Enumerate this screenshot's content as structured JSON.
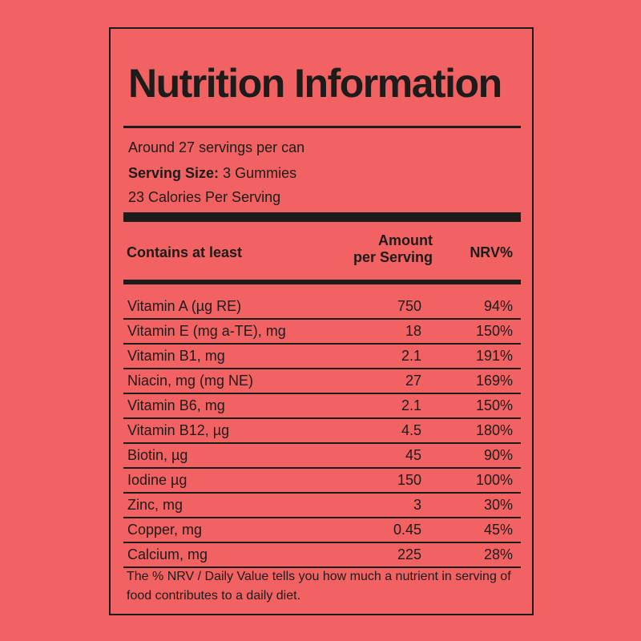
{
  "label": {
    "title": "Nutrition Information",
    "servings_per_can": "Around 27 servings per can",
    "serving_size_label": "Serving Size:",
    "serving_size_value": "3 Gummies",
    "calories": "23 Calories Per Serving",
    "columns": {
      "contains": "Contains at least",
      "amount_line1": "Amount",
      "amount_line2": "per Serving",
      "nrv": "NRV%"
    },
    "nutrients": [
      {
        "name": "Vitamin A  (µg RE)",
        "amount": "750",
        "nrv": "94%"
      },
      {
        "name": "Vitamin E (mg a-TE), mg",
        "amount": "18",
        "nrv": "150%"
      },
      {
        "name": "Vitamin B1, mg",
        "amount": "2.1",
        "nrv": "191%"
      },
      {
        "name": "Niacin, mg (mg NE)",
        "amount": "27",
        "nrv": "169%"
      },
      {
        "name": "Vitamin B6, mg",
        "amount": "2.1",
        "nrv": "150%"
      },
      {
        "name": "Vitamin B12, µg",
        "amount": "4.5",
        "nrv": "180%"
      },
      {
        "name": "Biotin, µg",
        "amount": "45",
        "nrv": "90%"
      },
      {
        "name": "Iodine µg",
        "amount": "150",
        "nrv": "100%"
      },
      {
        "name": "Zinc, mg",
        "amount": "3",
        "nrv": "30%"
      },
      {
        "name": "Copper, mg",
        "amount": "0.45",
        "nrv": "45%"
      },
      {
        "name": "Calcium, mg",
        "amount": "225",
        "nrv": "28%"
      }
    ],
    "footnote": "The % NRV / Daily Value tells you how much a nutrient in  serving of food contributes to a daily diet."
  },
  "colors": {
    "background": "#f26262",
    "ink": "#1e1b1b"
  }
}
